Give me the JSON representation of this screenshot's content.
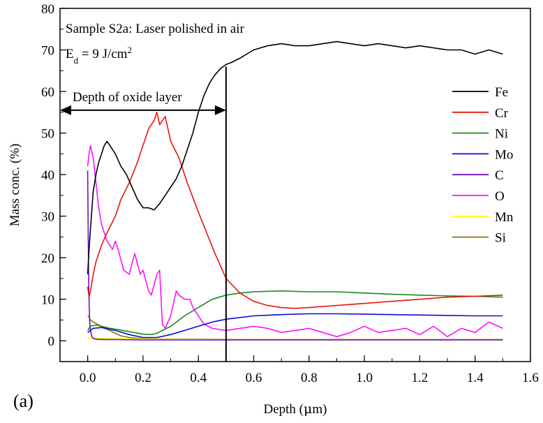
{
  "chart_data": {
    "type": "line",
    "panel_label": "(a)",
    "title_line1": "Sample S2a: Laser polished in air",
    "energy_label": {
      "prefix": "E",
      "subscript": "d",
      "value": " = 9 J/cm",
      "superscript": "2"
    },
    "xlabel": {
      "prefix": "Depth (",
      "mu": "μ",
      "suffix": "m)"
    },
    "ylabel": "Mass conc. (%)",
    "xlim": [
      -0.1,
      1.6
    ],
    "ylim": [
      -5,
      80
    ],
    "xticks": [
      0.0,
      0.2,
      0.4,
      0.6,
      0.8,
      1.0,
      1.2,
      1.4,
      1.6
    ],
    "xtick_labels": [
      "0.0",
      "0.2",
      "0.4",
      "0.6",
      "0.8",
      "1.0",
      "1.2",
      "1.4",
      "1.6"
    ],
    "yticks": [
      0,
      10,
      20,
      30,
      40,
      50,
      60,
      70,
      80
    ],
    "ytick_labels": [
      "0",
      "10",
      "20",
      "30",
      "40",
      "50",
      "60",
      "70",
      "80"
    ],
    "grid": false,
    "legend_position": "right",
    "annotation": {
      "text": "Depth of oxide layer",
      "arrow_from_x": -0.1,
      "arrow_to_x": 0.5,
      "arrow_y": 55.5,
      "vline_x": 0.5,
      "vline_top_y": 66
    },
    "series": [
      {
        "name": "Fe",
        "color": "#000000",
        "x": [
          0.0,
          0.005,
          0.01,
          0.02,
          0.03,
          0.04,
          0.05,
          0.06,
          0.07,
          0.08,
          0.09,
          0.1,
          0.12,
          0.14,
          0.16,
          0.18,
          0.2,
          0.22,
          0.24,
          0.26,
          0.28,
          0.3,
          0.32,
          0.34,
          0.36,
          0.38,
          0.4,
          0.42,
          0.44,
          0.46,
          0.48,
          0.5,
          0.52,
          0.55,
          0.6,
          0.65,
          0.7,
          0.75,
          0.8,
          0.85,
          0.9,
          0.95,
          1.0,
          1.05,
          1.1,
          1.15,
          1.2,
          1.25,
          1.3,
          1.35,
          1.4,
          1.45,
          1.5
        ],
        "y": [
          16,
          22,
          27,
          36,
          40,
          43,
          45,
          47,
          48,
          47,
          46,
          45,
          42,
          40,
          37,
          34,
          32,
          32,
          31.5,
          33,
          35,
          37,
          39,
          42,
          46,
          50,
          55,
          59,
          62,
          64,
          65.5,
          66.5,
          67,
          68,
          70,
          71,
          71.5,
          71,
          71,
          71.5,
          72,
          71.5,
          71,
          71.5,
          71,
          70.5,
          71,
          70.5,
          70,
          70,
          69,
          70,
          69
        ]
      },
      {
        "name": "Cr",
        "color": "#e8140c",
        "x": [
          0.0,
          0.005,
          0.01,
          0.02,
          0.03,
          0.05,
          0.07,
          0.1,
          0.12,
          0.15,
          0.18,
          0.2,
          0.22,
          0.24,
          0.25,
          0.26,
          0.28,
          0.3,
          0.33,
          0.36,
          0.4,
          0.43,
          0.46,
          0.5,
          0.55,
          0.6,
          0.65,
          0.7,
          0.75,
          0.8,
          0.9,
          1.0,
          1.1,
          1.2,
          1.3,
          1.4,
          1.5
        ],
        "y": [
          13,
          10.5,
          12,
          16,
          19,
          23,
          26,
          30,
          34,
          38,
          43,
          47,
          51,
          53,
          55,
          52,
          54,
          48,
          44,
          38,
          31,
          26,
          21,
          15,
          11.5,
          9.5,
          8.5,
          8,
          7.8,
          8,
          8.5,
          9,
          9.5,
          10,
          10.5,
          10.7,
          11
        ]
      },
      {
        "name": "Ni",
        "color": "#1a8a1a",
        "x": [
          0.0,
          0.005,
          0.01,
          0.03,
          0.05,
          0.08,
          0.1,
          0.15,
          0.2,
          0.23,
          0.25,
          0.3,
          0.35,
          0.4,
          0.45,
          0.5,
          0.55,
          0.6,
          0.7,
          0.8,
          0.9,
          1.0,
          1.1,
          1.2,
          1.3,
          1.4,
          1.5
        ],
        "y": [
          2.5,
          3,
          3.5,
          3.8,
          3.5,
          3,
          2.8,
          2.2,
          1.6,
          1.5,
          1.8,
          3.5,
          6,
          8,
          10,
          11,
          11.5,
          11.8,
          12,
          11.8,
          11.8,
          11.5,
          11.2,
          11,
          10.8,
          10.7,
          10.5
        ]
      },
      {
        "name": "Mo",
        "color": "#0a0adc",
        "x": [
          0.0,
          0.01,
          0.02,
          0.05,
          0.1,
          0.15,
          0.2,
          0.25,
          0.3,
          0.35,
          0.4,
          0.45,
          0.5,
          0.6,
          0.7,
          0.8,
          0.9,
          1.0,
          1.1,
          1.2,
          1.3,
          1.4,
          1.5
        ],
        "y": [
          2,
          2.5,
          3,
          3.2,
          2.5,
          1.5,
          0.8,
          0.8,
          1.5,
          2.5,
          3.5,
          4.5,
          5.2,
          6,
          6.3,
          6.5,
          6.5,
          6.4,
          6.3,
          6.2,
          6.1,
          6,
          6
        ]
      },
      {
        "name": "C",
        "color": "#7010c8",
        "x": [
          0.0,
          0.002,
          0.004,
          0.007,
          0.01,
          0.015,
          0.02,
          0.03,
          0.05,
          0.1,
          0.2,
          0.3,
          0.5,
          0.8,
          1.0,
          1.2,
          1.5
        ],
        "y": [
          41,
          25,
          12,
          5,
          2.5,
          1,
          0.6,
          0.4,
          0.3,
          0.3,
          0.2,
          0.2,
          0.2,
          0.2,
          0.2,
          0.2,
          0.2
        ]
      },
      {
        "name": "O",
        "color": "#ff10ff",
        "x": [
          0.0,
          0.005,
          0.01,
          0.02,
          0.03,
          0.04,
          0.05,
          0.07,
          0.09,
          0.1,
          0.11,
          0.13,
          0.15,
          0.17,
          0.19,
          0.2,
          0.22,
          0.23,
          0.25,
          0.26,
          0.27,
          0.28,
          0.3,
          0.32,
          0.33,
          0.35,
          0.37,
          0.38,
          0.4,
          0.42,
          0.45,
          0.5,
          0.55,
          0.6,
          0.65,
          0.7,
          0.75,
          0.8,
          0.85,
          0.9,
          0.95,
          1.0,
          1.05,
          1.1,
          1.15,
          1.2,
          1.25,
          1.3,
          1.35,
          1.4,
          1.45,
          1.5
        ],
        "y": [
          42,
          45,
          47,
          44,
          38,
          32,
          28,
          24,
          22,
          24,
          22,
          17,
          16,
          21,
          16,
          17,
          12,
          11,
          16,
          17,
          4,
          3,
          6,
          12,
          11,
          10,
          10,
          8,
          6,
          4,
          3,
          2.5,
          3,
          3.5,
          3,
          2,
          2.5,
          3,
          2,
          1,
          2,
          3.5,
          2,
          2.5,
          3,
          1.5,
          3.5,
          1,
          3,
          2,
          4.5,
          3
        ]
      },
      {
        "name": "Mn",
        "color": "#ffff00",
        "x": [
          0.0,
          0.02,
          0.05,
          0.1,
          0.2,
          0.3,
          0.5,
          0.8,
          1.0,
          1.2,
          1.5
        ],
        "y": [
          0.5,
          0.6,
          0.6,
          0.5,
          0.4,
          0.3,
          0.2,
          0.2,
          0.2,
          0.2,
          0.2
        ]
      },
      {
        "name": "Si",
        "color": "#857012",
        "x": [
          0.0,
          0.005,
          0.01,
          0.02,
          0.04,
          0.06,
          0.08,
          0.1,
          0.12,
          0.15,
          0.2,
          0.3,
          0.5,
          0.8,
          1.0,
          1.2,
          1.5
        ],
        "y": [
          6,
          5.8,
          5,
          4.5,
          3.8,
          3,
          2.5,
          1.8,
          1.2,
          0.8,
          0.5,
          0.4,
          0.3,
          0.3,
          0.3,
          0.3,
          0.3
        ]
      }
    ]
  }
}
